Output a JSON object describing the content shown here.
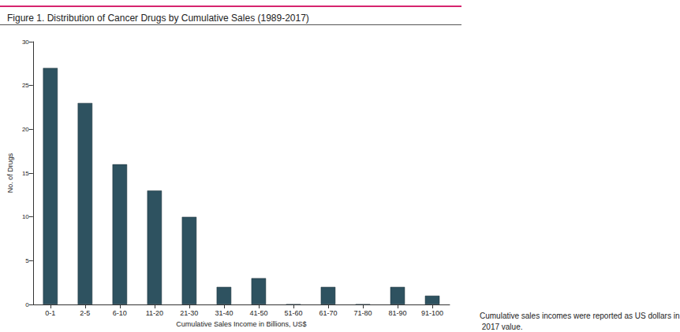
{
  "chart_data": {
    "type": "bar",
    "title": "Figure 1. Distribution of Cancer Drugs by Cumulative Sales (1989-2017)",
    "x_label": "Cumulative Sales Income in Billions, US$",
    "y_label": "No. of Drugs",
    "annotation": "Cumulative sales incomes were reported as US dollars in 2017 value.",
    "categories": [
      "0-1",
      "2-5",
      "6-10",
      "11-20",
      "21-30",
      "31-40",
      "41-50",
      "51-60",
      "61-70",
      "71-80",
      "81-90",
      "91-100"
    ],
    "values": [
      27,
      23,
      16,
      13,
      10,
      2,
      3,
      0,
      2,
      0,
      2,
      1
    ],
    "color": "#2e5260",
    "ylim": [
      0,
      30
    ],
    "yticks": [
      0,
      5,
      10,
      15,
      20,
      25,
      30
    ],
    "grid": false
  }
}
